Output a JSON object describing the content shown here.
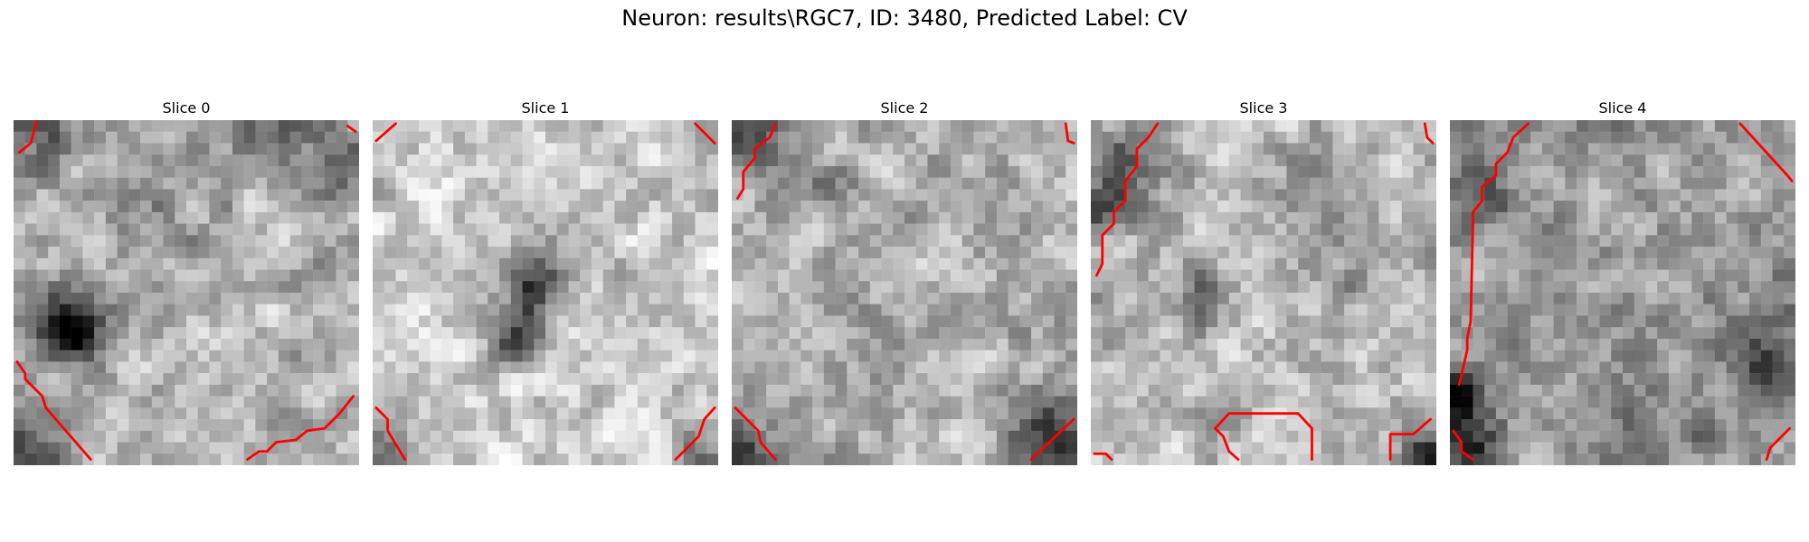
{
  "figure": {
    "title": "Neuron: results\\RGC7, ID: 3480, Predicted Label: CV"
  },
  "panels": [
    {
      "title": "Slice 0",
      "contour_color": "#ff0000"
    },
    {
      "title": "Slice 1",
      "contour_color": "#ff0000"
    },
    {
      "title": "Slice 2",
      "contour_color": "#ff0000"
    },
    {
      "title": "Slice 3",
      "contour_color": "#ff0000"
    },
    {
      "title": "Slice 4",
      "contour_color": "#ff0000"
    }
  ]
}
